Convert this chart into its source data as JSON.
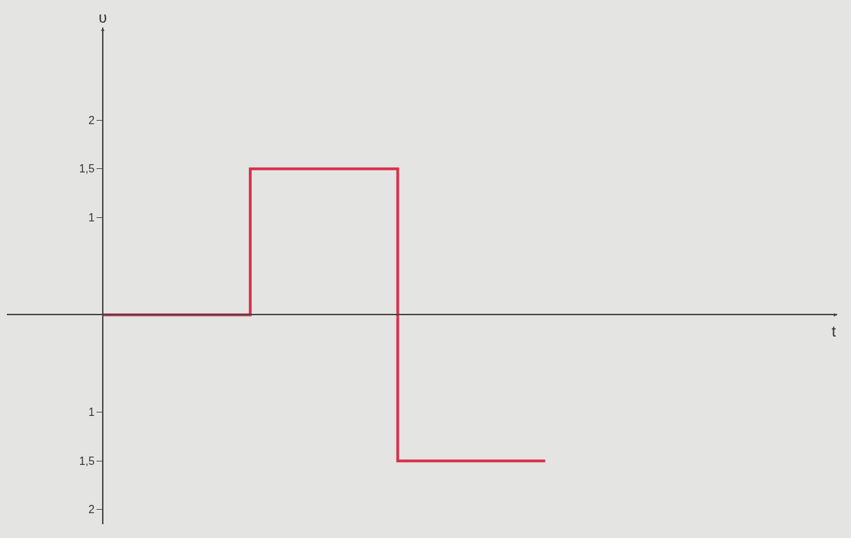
{
  "chart_data": {
    "type": "step",
    "ylabel": "υ",
    "annotations": [
      "t"
    ],
    "categories": [
      null,
      null,
      null,
      null
    ],
    "series": [
      {
        "color": "#d9304a",
        "values": [
          0,
          1.5,
          -1.5,
          -1.5
        ]
      }
    ],
    "ylim": [
      -2.15,
      2.95
    ],
    "yticks": [
      {
        "value": 2,
        "label": "2"
      },
      {
        "value": 1.5,
        "label": "1,5"
      },
      {
        "value": 1,
        "label": "1"
      },
      {
        "value": -1,
        "label": "1"
      },
      {
        "value": -1.5,
        "label": "1,5"
      },
      {
        "value": -2,
        "label": "2"
      }
    ],
    "grid": false
  }
}
